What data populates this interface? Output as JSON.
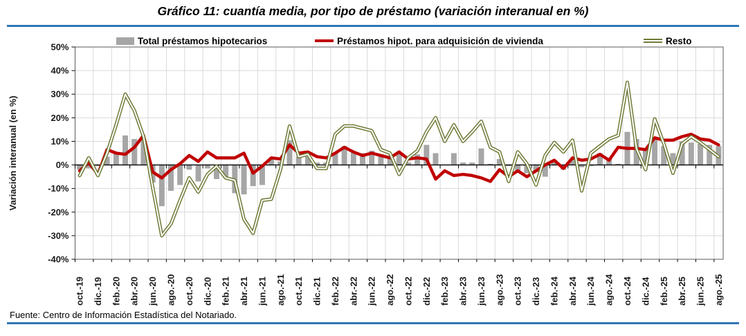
{
  "title": "Gráfico 11: cuantía media, por tipo de préstamo (variación interanual en %)",
  "footer": {
    "source": "Fuente: Centro de Información Estadística del Notariado."
  },
  "colors": {
    "bar": "#A6A6A6",
    "red": "#C00000",
    "green": "#6E7B37",
    "rule_blue": "#2E75B6",
    "grid": "#D9D9D9",
    "border": "#595959",
    "axis": "#000000",
    "text": "#1A1A1A"
  },
  "chart_data": {
    "type": "bar",
    "subtype": "bar+line combo",
    "title": "Gráfico 11: cuantía media, por tipo de préstamo (variación interanual en %)",
    "xlabel": "",
    "ylabel": "Variación interanual (en %)",
    "ylim": [
      -40,
      50
    ],
    "ytick_step": 10,
    "grid": true,
    "legend_position": "top",
    "y_tick_labels": [
      "50%",
      "40%",
      "30%",
      "20%",
      "10%",
      "0%",
      "-10%",
      "-20%",
      "-30%",
      "-40%"
    ],
    "x_tick_labels": [
      "oct.-19",
      "dic.-19",
      "feb.-20",
      "abr.-20",
      "jun.-20",
      "ago.-20",
      "oct.-20",
      "dic.-20",
      "feb.-21",
      "abr.-21",
      "jun.-21",
      "ago.-21",
      "oct.-21",
      "dic.-21",
      "feb.-22",
      "abr.-22",
      "jun.-22",
      "ago.-22",
      "oct.-22",
      "dic.-22",
      "feb.-23",
      "abr.-23",
      "jun.-23",
      "ago.-23",
      "oct.-23",
      "dic.-23",
      "feb.-24",
      "abr.-24",
      "jun.-24",
      "ago.-24",
      "oct.-24",
      "dic.-24",
      "feb.-25",
      "abr.-25",
      "jun.-25",
      "ago.-25"
    ],
    "x_label_interval": 2,
    "categories": [
      "oct.-19",
      "nov.-19",
      "dic.-19",
      "ene.-20",
      "feb.-20",
      "mar.-20",
      "abr.-20",
      "may.-20",
      "jun.-20",
      "jul.-20",
      "ago.-20",
      "sep.-20",
      "oct.-20",
      "nov.-20",
      "dic.-20",
      "ene.-21",
      "feb.-21",
      "mar.-21",
      "abr.-21",
      "may.-21",
      "jun.-21",
      "jul.-21",
      "ago.-21",
      "sep.-21",
      "oct.-21",
      "nov.-21",
      "dic.-21",
      "ene.-22",
      "feb.-22",
      "mar.-22",
      "abr.-22",
      "may.-22",
      "jun.-22",
      "jul.-22",
      "ago.-22",
      "sep.-22",
      "oct.-22",
      "nov.-22",
      "dic.-22",
      "ene.-23",
      "feb.-23",
      "mar.-23",
      "abr.-23",
      "may.-23",
      "jun.-23",
      "jul.-23",
      "ago.-23",
      "sep.-23",
      "oct.-23",
      "nov.-23",
      "dic.-23",
      "ene.-24",
      "feb.-24",
      "mar.-24",
      "abr.-24",
      "may.-24",
      "jun.-24",
      "jul.-24",
      "ago.-24",
      "sep.-24",
      "oct.-24",
      "nov.-24",
      "dic.-24",
      "ene.-25",
      "feb.-25",
      "mar.-25",
      "abr.-25",
      "may.-25",
      "jun.-25",
      "jul.-25",
      "ago.-25"
    ],
    "series": [
      {
        "name": "Total préstamos hipotecarios",
        "type": "bar",
        "color": "#A6A6A6",
        "values": [
          -2,
          -1.5,
          -0.5,
          3.5,
          5,
          12.5,
          11,
          11,
          -7.5,
          -17.5,
          -11,
          -8.5,
          -2,
          -7,
          -1.5,
          -6,
          -5.5,
          -12,
          -12.5,
          -9,
          -8.5,
          3,
          1.5,
          10.5,
          3.5,
          3.5,
          1,
          1,
          5,
          8,
          5.5,
          5,
          6,
          4.5,
          4,
          5,
          1,
          4.5,
          8.5,
          5,
          0,
          5,
          1,
          1,
          7,
          0.5,
          2.5,
          -0.5,
          -2.5,
          -3.5,
          -3,
          -5,
          2,
          -2,
          3,
          -1,
          -0.5,
          5,
          2.5,
          0.5,
          14,
          11,
          7,
          11,
          8,
          5,
          10,
          9.5,
          9,
          8.5,
          8
        ]
      },
      {
        "name": "Préstamos hipot. para adquisición de vivienda",
        "type": "line",
        "color": "#C00000",
        "values": [
          -2.5,
          1,
          -4,
          6.5,
          5,
          4.5,
          7.5,
          12.5,
          -3,
          -5.5,
          -2,
          0.5,
          4,
          1.5,
          5.5,
          3,
          3,
          3,
          5,
          -3.5,
          -0.5,
          3,
          2.5,
          8.5,
          5,
          5.5,
          3.5,
          3,
          5,
          7.5,
          5.5,
          4,
          5,
          4,
          3,
          5.5,
          2.5,
          3,
          2.5,
          -6,
          -2.5,
          -4.5,
          -4,
          -4.5,
          -5.5,
          -7,
          -2,
          -5,
          -2.5,
          -5,
          -2.5,
          0,
          2,
          -1.5,
          3,
          2,
          2.5,
          4.5,
          2,
          7.5,
          7,
          7,
          6.5,
          11.5,
          10.5,
          10.5,
          12,
          13,
          11,
          10.5,
          8.5
        ]
      },
      {
        "name": "Resto",
        "type": "line-outlined",
        "color": "#6E7B37",
        "values": [
          -4.5,
          3,
          -4.5,
          5,
          17,
          30,
          23,
          12,
          -9.5,
          -30,
          -25,
          -15,
          -5.5,
          -11.5,
          -4,
          -0.5,
          -5.5,
          -6.5,
          -23,
          -29,
          -15,
          -14.5,
          -2,
          16.5,
          3.5,
          4.5,
          -1.5,
          -1.5,
          13,
          16.5,
          16.5,
          15.5,
          14.5,
          6.5,
          5,
          -4,
          3,
          6,
          14,
          20,
          10,
          17,
          10,
          14,
          18.5,
          7.5,
          5.5,
          -7,
          5.5,
          0.5,
          -8.5,
          4,
          9.5,
          5.5,
          10.5,
          -11,
          5,
          8,
          11,
          12.5,
          35,
          7,
          -2,
          19.5,
          9,
          -3.5,
          9,
          12,
          9.5,
          6.5,
          3.5
        ]
      }
    ]
  }
}
